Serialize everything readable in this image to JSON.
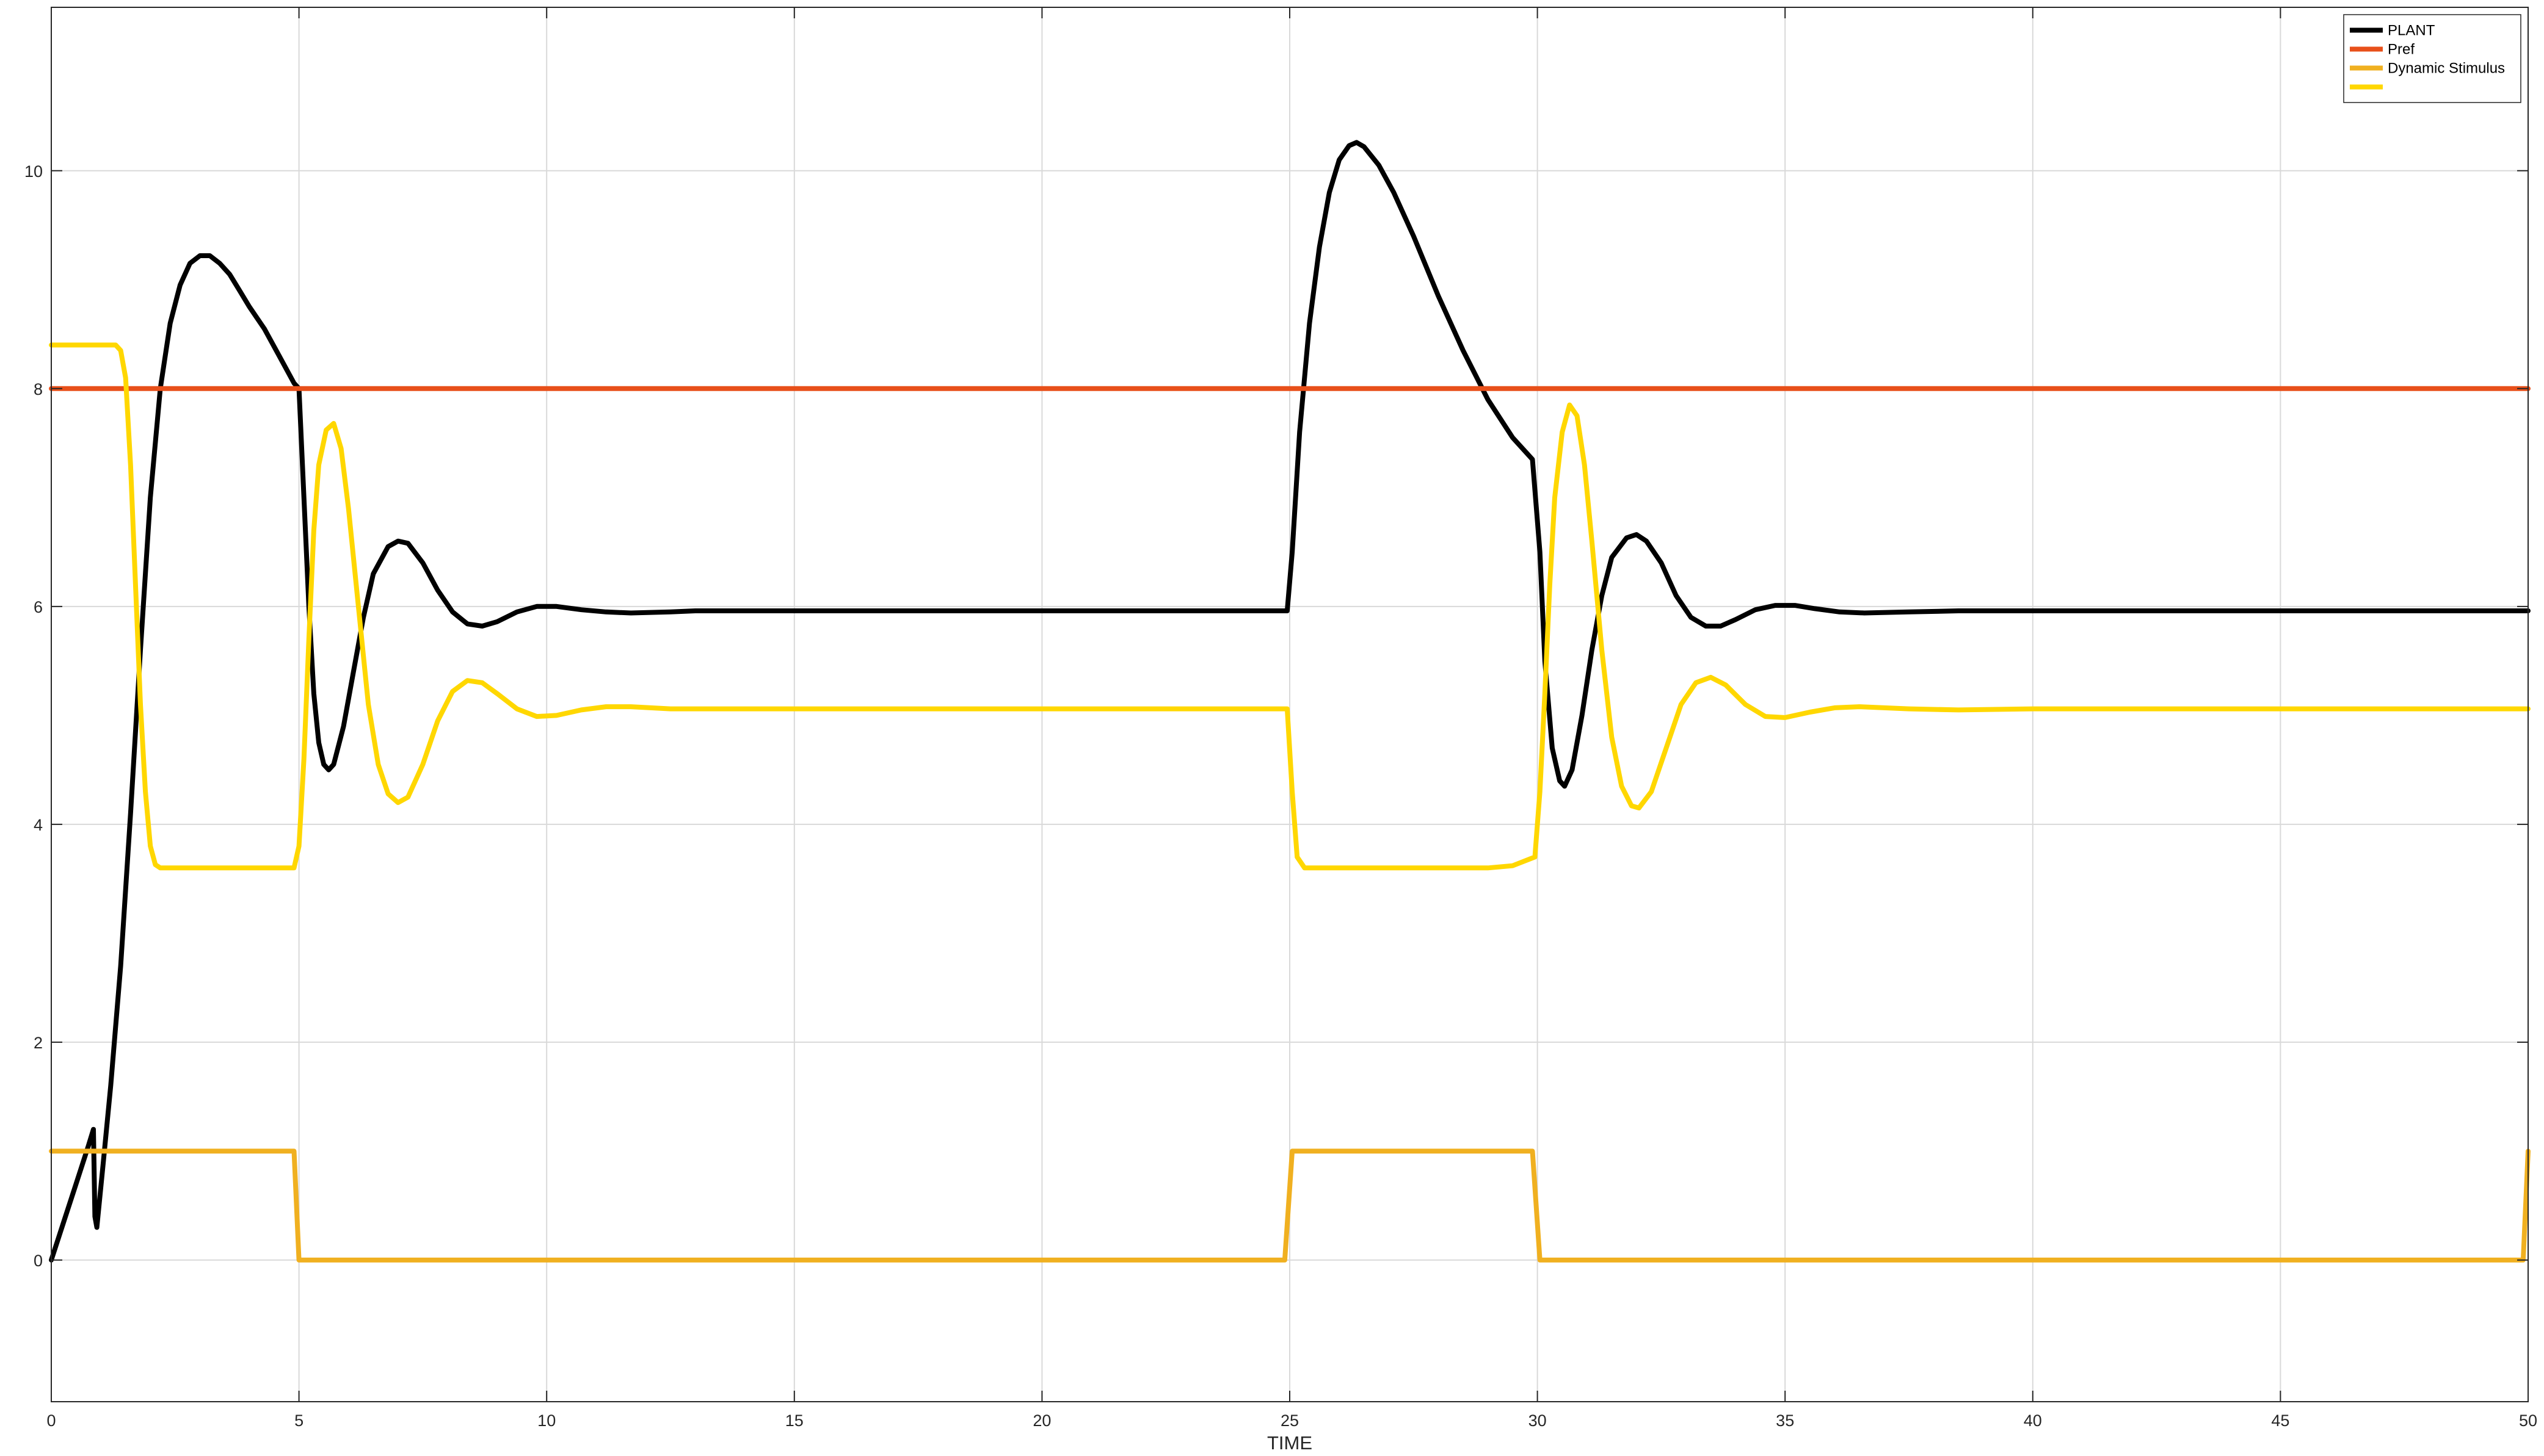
{
  "chart_data": {
    "type": "line",
    "title": "",
    "xlabel": "TIME",
    "ylabel": "",
    "xlim": [
      0,
      50
    ],
    "ylim": [
      -1.3,
      11.5
    ],
    "xticks": [
      0,
      5,
      10,
      15,
      20,
      25,
      30,
      35,
      40,
      45,
      50
    ],
    "xtick_labels": [
      "0",
      "5",
      "10",
      "15",
      "20",
      "25",
      "30",
      "35",
      "40",
      "45",
      "50"
    ],
    "yticks": [
      0,
      2,
      4,
      6,
      8,
      10
    ],
    "ytick_labels": [
      "0",
      "2",
      "4",
      "6",
      "8",
      "10"
    ],
    "grid": true,
    "legend_position": "top-right",
    "series": [
      {
        "name": "PLANT",
        "color": "#000000",
        "points": [
          [
            0,
            0
          ],
          [
            0.25,
            0.35
          ],
          [
            0.5,
            0.7
          ],
          [
            0.75,
            1.05
          ],
          [
            0.85,
            1.2
          ],
          [
            0.88,
            0.4
          ],
          [
            0.92,
            0.3
          ],
          [
            1.05,
            0.9
          ],
          [
            1.2,
            1.6
          ],
          [
            1.4,
            2.7
          ],
          [
            1.6,
            4.1
          ],
          [
            1.8,
            5.6
          ],
          [
            2.0,
            7.0
          ],
          [
            2.2,
            8.0
          ],
          [
            2.4,
            8.6
          ],
          [
            2.6,
            8.95
          ],
          [
            2.8,
            9.15
          ],
          [
            3.0,
            9.22
          ],
          [
            3.2,
            9.22
          ],
          [
            3.4,
            9.15
          ],
          [
            3.6,
            9.05
          ],
          [
            3.8,
            8.9
          ],
          [
            4.0,
            8.75
          ],
          [
            4.3,
            8.55
          ],
          [
            4.6,
            8.3
          ],
          [
            4.9,
            8.05
          ],
          [
            5.0,
            8.0
          ],
          [
            5.1,
            7.0
          ],
          [
            5.2,
            6.0
          ],
          [
            5.3,
            5.2
          ],
          [
            5.4,
            4.75
          ],
          [
            5.5,
            4.55
          ],
          [
            5.6,
            4.5
          ],
          [
            5.7,
            4.55
          ],
          [
            5.9,
            4.9
          ],
          [
            6.1,
            5.4
          ],
          [
            6.3,
            5.9
          ],
          [
            6.5,
            6.3
          ],
          [
            6.8,
            6.55
          ],
          [
            7.0,
            6.6
          ],
          [
            7.2,
            6.58
          ],
          [
            7.5,
            6.4
          ],
          [
            7.8,
            6.15
          ],
          [
            8.1,
            5.95
          ],
          [
            8.4,
            5.84
          ],
          [
            8.7,
            5.82
          ],
          [
            9.0,
            5.86
          ],
          [
            9.4,
            5.95
          ],
          [
            9.8,
            6.0
          ],
          [
            10.2,
            6.0
          ],
          [
            10.7,
            5.97
          ],
          [
            11.2,
            5.95
          ],
          [
            11.7,
            5.94
          ],
          [
            12.5,
            5.95
          ],
          [
            13.0,
            5.96
          ],
          [
            14.0,
            5.96
          ],
          [
            15.0,
            5.96
          ],
          [
            20.0,
            5.96
          ],
          [
            24.95,
            5.96
          ],
          [
            25.05,
            6.5
          ],
          [
            25.2,
            7.6
          ],
          [
            25.4,
            8.6
          ],
          [
            25.6,
            9.3
          ],
          [
            25.8,
            9.8
          ],
          [
            26.0,
            10.1
          ],
          [
            26.2,
            10.23
          ],
          [
            26.35,
            10.26
          ],
          [
            26.5,
            10.22
          ],
          [
            26.8,
            10.05
          ],
          [
            27.1,
            9.8
          ],
          [
            27.5,
            9.4
          ],
          [
            28.0,
            8.85
          ],
          [
            28.5,
            8.35
          ],
          [
            29.0,
            7.9
          ],
          [
            29.5,
            7.55
          ],
          [
            29.9,
            7.35
          ],
          [
            30.05,
            6.5
          ],
          [
            30.15,
            5.5
          ],
          [
            30.3,
            4.7
          ],
          [
            30.45,
            4.4
          ],
          [
            30.55,
            4.35
          ],
          [
            30.7,
            4.5
          ],
          [
            30.9,
            5.0
          ],
          [
            31.1,
            5.6
          ],
          [
            31.3,
            6.1
          ],
          [
            31.5,
            6.45
          ],
          [
            31.8,
            6.63
          ],
          [
            32.0,
            6.66
          ],
          [
            32.2,
            6.6
          ],
          [
            32.5,
            6.4
          ],
          [
            32.8,
            6.1
          ],
          [
            33.1,
            5.9
          ],
          [
            33.4,
            5.82
          ],
          [
            33.7,
            5.82
          ],
          [
            34.0,
            5.88
          ],
          [
            34.4,
            5.97
          ],
          [
            34.8,
            6.01
          ],
          [
            35.2,
            6.01
          ],
          [
            35.6,
            5.98
          ],
          [
            36.1,
            5.95
          ],
          [
            36.6,
            5.94
          ],
          [
            37.5,
            5.95
          ],
          [
            38.5,
            5.96
          ],
          [
            40.0,
            5.96
          ],
          [
            45.0,
            5.96
          ],
          [
            50.0,
            5.96
          ]
        ]
      },
      {
        "name": "Pref",
        "color": "#e8501a",
        "points": [
          [
            0,
            8
          ],
          [
            50,
            8
          ]
        ]
      },
      {
        "name": "Dynamic Stimulus",
        "color": "#f0b020",
        "points": [
          [
            0,
            1
          ],
          [
            4.9,
            1
          ],
          [
            5.0,
            0
          ],
          [
            24.9,
            0
          ],
          [
            25.05,
            1
          ],
          [
            29.9,
            1
          ],
          [
            30.05,
            0
          ],
          [
            49.9,
            0
          ],
          [
            50.0,
            1
          ]
        ]
      },
      {
        "name": "",
        "color": "#ffd700",
        "points": [
          [
            0,
            8.4
          ],
          [
            1.3,
            8.4
          ],
          [
            1.4,
            8.35
          ],
          [
            1.5,
            8.1
          ],
          [
            1.6,
            7.3
          ],
          [
            1.7,
            6.2
          ],
          [
            1.8,
            5.1
          ],
          [
            1.9,
            4.3
          ],
          [
            2.0,
            3.8
          ],
          [
            2.1,
            3.63
          ],
          [
            2.2,
            3.6
          ],
          [
            4.9,
            3.6
          ],
          [
            5.0,
            3.8
          ],
          [
            5.1,
            4.6
          ],
          [
            5.2,
            5.7
          ],
          [
            5.3,
            6.7
          ],
          [
            5.4,
            7.3
          ],
          [
            5.55,
            7.62
          ],
          [
            5.7,
            7.68
          ],
          [
            5.85,
            7.45
          ],
          [
            6.0,
            6.9
          ],
          [
            6.2,
            6.0
          ],
          [
            6.4,
            5.1
          ],
          [
            6.6,
            4.55
          ],
          [
            6.8,
            4.28
          ],
          [
            7.0,
            4.2
          ],
          [
            7.2,
            4.25
          ],
          [
            7.5,
            4.55
          ],
          [
            7.8,
            4.95
          ],
          [
            8.1,
            5.22
          ],
          [
            8.4,
            5.32
          ],
          [
            8.7,
            5.3
          ],
          [
            9.0,
            5.2
          ],
          [
            9.4,
            5.06
          ],
          [
            9.8,
            4.99
          ],
          [
            10.2,
            5.0
          ],
          [
            10.7,
            5.05
          ],
          [
            11.2,
            5.08
          ],
          [
            11.7,
            5.08
          ],
          [
            12.5,
            5.06
          ],
          [
            13.5,
            5.06
          ],
          [
            15.0,
            5.06
          ],
          [
            20.0,
            5.06
          ],
          [
            24.95,
            5.06
          ],
          [
            25.05,
            4.3
          ],
          [
            25.15,
            3.7
          ],
          [
            25.3,
            3.6
          ],
          [
            29.0,
            3.6
          ],
          [
            29.5,
            3.62
          ],
          [
            29.95,
            3.7
          ],
          [
            30.05,
            4.3
          ],
          [
            30.15,
            5.2
          ],
          [
            30.25,
            6.2
          ],
          [
            30.35,
            7.0
          ],
          [
            30.5,
            7.6
          ],
          [
            30.65,
            7.85
          ],
          [
            30.8,
            7.75
          ],
          [
            30.95,
            7.3
          ],
          [
            31.1,
            6.6
          ],
          [
            31.3,
            5.6
          ],
          [
            31.5,
            4.8
          ],
          [
            31.7,
            4.35
          ],
          [
            31.9,
            4.17
          ],
          [
            32.05,
            4.15
          ],
          [
            32.3,
            4.3
          ],
          [
            32.6,
            4.7
          ],
          [
            32.9,
            5.1
          ],
          [
            33.2,
            5.3
          ],
          [
            33.5,
            5.35
          ],
          [
            33.8,
            5.28
          ],
          [
            34.2,
            5.1
          ],
          [
            34.6,
            4.99
          ],
          [
            35.0,
            4.98
          ],
          [
            35.5,
            5.03
          ],
          [
            36.0,
            5.07
          ],
          [
            36.5,
            5.08
          ],
          [
            37.5,
            5.06
          ],
          [
            38.5,
            5.05
          ],
          [
            40.0,
            5.06
          ],
          [
            45.0,
            5.06
          ],
          [
            50.0,
            5.06
          ]
        ]
      }
    ]
  }
}
